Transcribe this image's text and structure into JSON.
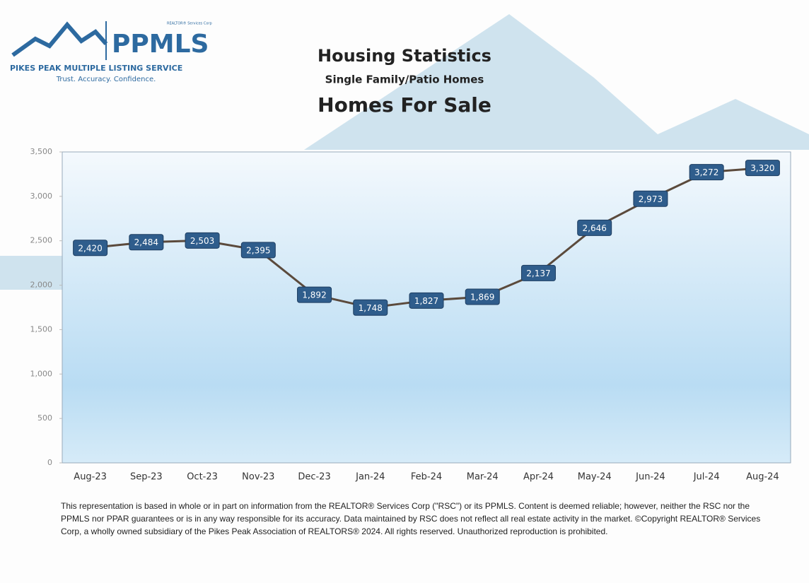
{
  "logo": {
    "corp": "REALTOR® Services Corp",
    "name": "PPMLS",
    "service": "PIKES PEAK MULTIPLE LISTING SERVICE",
    "tagline": "Trust. Accuracy. Confidence."
  },
  "chart_data": {
    "type": "line",
    "heading": "Housing Statistics",
    "subtitle": "Single Family/Patio Homes",
    "title": "Homes For Sale",
    "categories": [
      "Aug-23",
      "Sep-23",
      "Oct-23",
      "Nov-23",
      "Dec-23",
      "Jan-24",
      "Feb-24",
      "Mar-24",
      "Apr-24",
      "May-24",
      "Jun-24",
      "Jul-24",
      "Aug-24"
    ],
    "values": [
      2420,
      2484,
      2503,
      2395,
      1892,
      1748,
      1827,
      1869,
      2137,
      2646,
      2973,
      3272,
      3320
    ],
    "value_labels": [
      "2,420",
      "2,484",
      "2,503",
      "2,395",
      "1,892",
      "1,748",
      "1,827",
      "1,869",
      "2,137",
      "2,646",
      "2,973",
      "3,272",
      "3,320"
    ],
    "color": "#5b4a3c",
    "label_color": "#2f5d8c",
    "ylim": [
      0,
      3500
    ],
    "yticks": [
      0,
      500,
      {
        "value": 1000,
        "label": "1,000"
      },
      {
        "value": 1500,
        "label": "1,500"
      },
      {
        "value": 2000,
        "label": "2,000"
      },
      {
        "value": 2500,
        "label": "2,500"
      },
      {
        "value": 3000,
        "label": "3,000"
      },
      {
        "value": 3500,
        "label": "3,500"
      }
    ]
  },
  "disclaimer": "This representation is based in whole or in part on information from the REALTOR® Services Corp (\"RSC\") or its PPMLS. Content is deemed reliable; however, neither the RSC nor the PPMLS nor PPAR guarantees or is in any way responsible for its accuracy. Data maintained by RSC does not reflect all real estate activity in the market. ©Copyright REALTOR® Services Corp, a wholly owned subsidiary of the Pikes Peak Association of REALTORS® 2024. All rights reserved. Unauthorized reproduction is prohibited."
}
